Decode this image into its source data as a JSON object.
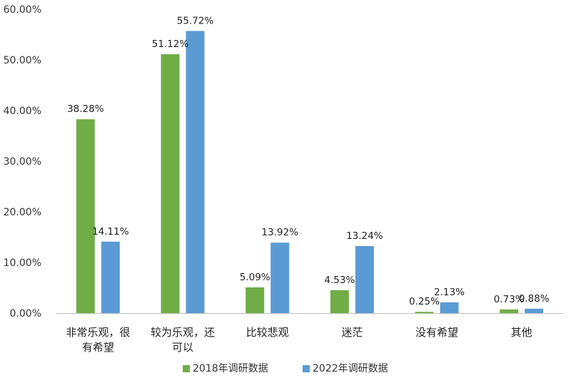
{
  "chart_data": {
    "type": "bar",
    "title": "",
    "xlabel": "",
    "ylabel": "",
    "ylim": [
      0,
      60
    ],
    "yticks": [
      "0.00%",
      "10.00%",
      "20.00%",
      "30.00%",
      "40.00%",
      "50.00%",
      "60.00%"
    ],
    "grid": false,
    "legend_position": "bottom",
    "categories": [
      [
        "非常乐观，很",
        "有希望"
      ],
      [
        "较为乐观，还",
        "可以"
      ],
      [
        "比较悲观"
      ],
      [
        "迷茫"
      ],
      [
        "没有希望"
      ],
      [
        "其他"
      ]
    ],
    "series": [
      {
        "name": "2018年调研数据",
        "color": "#70ad47",
        "values": [
          38.28,
          51.12,
          5.09,
          4.53,
          0.25,
          0.73
        ],
        "labels": [
          "38.28%",
          "51.12%",
          "5.09%",
          "4.53%",
          "0.25%",
          "0.73%"
        ]
      },
      {
        "name": "2022年调研数据",
        "color": "#5b9bd5",
        "values": [
          14.11,
          55.72,
          13.92,
          13.24,
          2.13,
          0.88
        ],
        "labels": [
          "14.11%",
          "55.72%",
          "13.92%",
          "13.24%",
          "2.13%",
          "0.88%"
        ]
      }
    ]
  }
}
